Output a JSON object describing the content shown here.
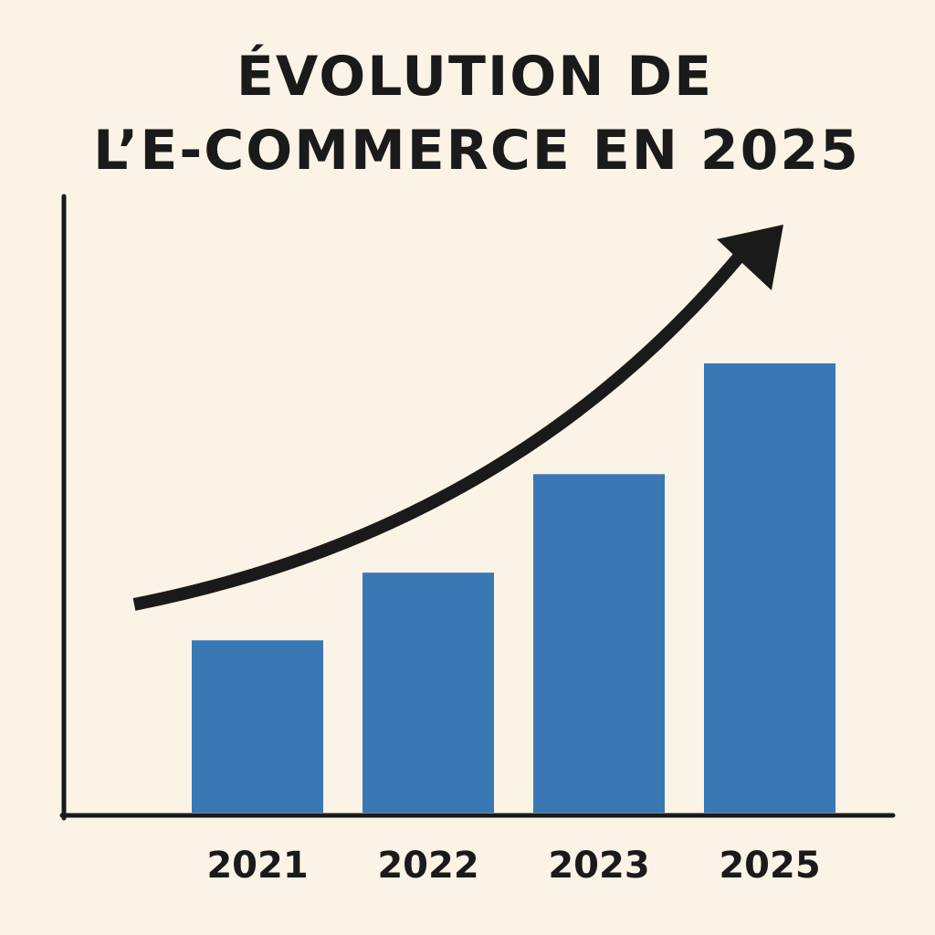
{
  "colors": {
    "background": "#FBF3E6",
    "bar": "#3A78B5",
    "ink": "#1A1A1A"
  },
  "chart_data": {
    "type": "bar",
    "title_lines": [
      "ÉVOLUTION DE",
      "L’E-COMMERCE EN 2025"
    ],
    "categories": [
      "2021",
      "2022",
      "2023",
      "2025"
    ],
    "values": [
      28,
      39,
      55,
      73
    ],
    "ylim": [
      0,
      100
    ],
    "xlabel": "",
    "ylabel": "",
    "grid": false,
    "legend": "none",
    "trend_arrow": "curved, rising left to right",
    "y_tick_labels": false
  }
}
